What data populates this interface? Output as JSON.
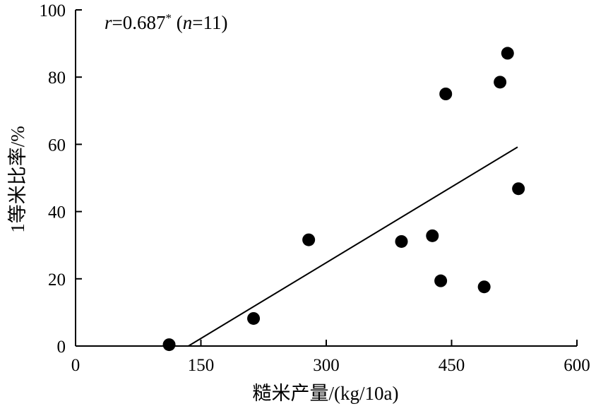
{
  "chart_data": {
    "type": "scatter",
    "xlabel": "糙米产量/(kg/10a)",
    "ylabel": "1等米比率/%",
    "xlim": [
      0,
      600
    ],
    "ylim": [
      0,
      100
    ],
    "xticks": [
      "0",
      "150",
      "300",
      "450",
      "600"
    ],
    "yticks": [
      "0",
      "20",
      "40",
      "60",
      "80",
      "100"
    ],
    "annotation": {
      "r_symbol": "r",
      "r_value": "=0.687",
      "significance": "*",
      "n_open": " (",
      "n_symbol": "n",
      "n_value": "=11)"
    },
    "points": [
      {
        "x": 112,
        "y": 0.4
      },
      {
        "x": 213,
        "y": 8.2
      },
      {
        "x": 279,
        "y": 31.6
      },
      {
        "x": 390,
        "y": 31.1
      },
      {
        "x": 427,
        "y": 32.8
      },
      {
        "x": 437,
        "y": 19.4
      },
      {
        "x": 443,
        "y": 75.0
      },
      {
        "x": 489,
        "y": 17.6
      },
      {
        "x": 508,
        "y": 78.5
      },
      {
        "x": 517,
        "y": 87.1
      },
      {
        "x": 530,
        "y": 46.8
      }
    ],
    "trendline": {
      "x1": 135,
      "y1": 0,
      "x2": 529,
      "y2": 59.2
    }
  }
}
